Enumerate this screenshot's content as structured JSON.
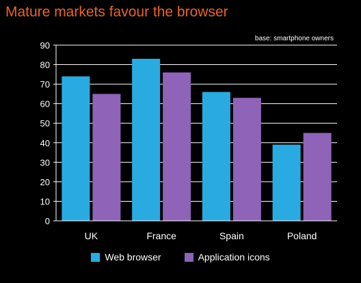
{
  "chart_data": {
    "type": "bar",
    "title": "Mature markets favour the browser",
    "note": "base: smartphone owners",
    "categories": [
      "UK",
      "France",
      "Spain",
      "Poland"
    ],
    "series": [
      {
        "name": "Web browser",
        "values": [
          74,
          83,
          66,
          39
        ],
        "color": "#29abe2"
      },
      {
        "name": "Application icons",
        "values": [
          65,
          76,
          63,
          45
        ],
        "color": "#8e63b8"
      }
    ],
    "ylim": [
      0,
      90
    ],
    "yticks": [
      0,
      10,
      20,
      30,
      40,
      50,
      60,
      70,
      80,
      90
    ],
    "grid": true,
    "legend": "bottom",
    "colors": {
      "background": "#000000",
      "title": "#e8652a",
      "text": "#ffffff",
      "grid": "#ffffff"
    }
  }
}
